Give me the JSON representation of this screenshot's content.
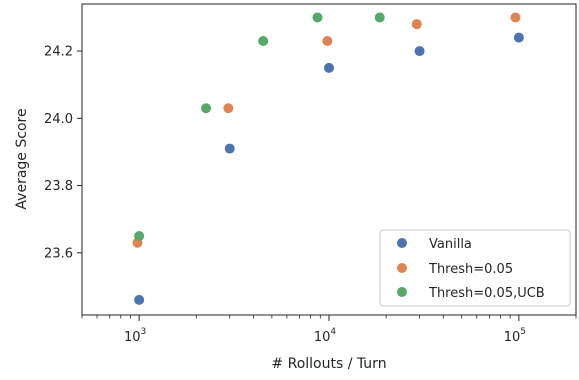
{
  "chart_data": {
    "type": "scatter",
    "xlabel": "# Rollouts / Turn",
    "ylabel": "Average Score",
    "xscale": "log",
    "xlim": [
      500,
      200000
    ],
    "ylim": [
      23.415,
      24.34
    ],
    "grid": false,
    "legend_placement": "bottom-right",
    "xticks": [
      {
        "value": 1000,
        "base": "10",
        "exp": "3"
      },
      {
        "value": 10000,
        "base": "10",
        "exp": "4"
      },
      {
        "value": 100000,
        "base": "10",
        "exp": "5"
      }
    ],
    "yticks": [
      {
        "value": 23.6,
        "label": "23.6"
      },
      {
        "value": 23.8,
        "label": "23.8"
      },
      {
        "value": 24.0,
        "label": "24.0"
      },
      {
        "value": 24.2,
        "label": "24.2"
      }
    ],
    "series": [
      {
        "name": "Vanilla",
        "color": "#4c72b0",
        "points": [
          {
            "x": 1000,
            "y": 23.46
          },
          {
            "x": 3000,
            "y": 23.91
          },
          {
            "x": 10000,
            "y": 24.15
          },
          {
            "x": 30000,
            "y": 24.2
          },
          {
            "x": 100000,
            "y": 24.24
          }
        ]
      },
      {
        "name": "Thresh=0.05",
        "color": "#dd8452",
        "points": [
          {
            "x": 980,
            "y": 23.63
          },
          {
            "x": 2950,
            "y": 24.03
          },
          {
            "x": 9800,
            "y": 24.23
          },
          {
            "x": 29000,
            "y": 24.28
          },
          {
            "x": 96000,
            "y": 24.3
          }
        ]
      },
      {
        "name": "Thresh=0.05,UCB",
        "color": "#55a868",
        "points": [
          {
            "x": 1000,
            "y": 23.65
          },
          {
            "x": 2250,
            "y": 24.03
          },
          {
            "x": 4500,
            "y": 24.23
          },
          {
            "x": 8700,
            "y": 24.3
          },
          {
            "x": 18500,
            "y": 24.3
          }
        ]
      }
    ]
  }
}
